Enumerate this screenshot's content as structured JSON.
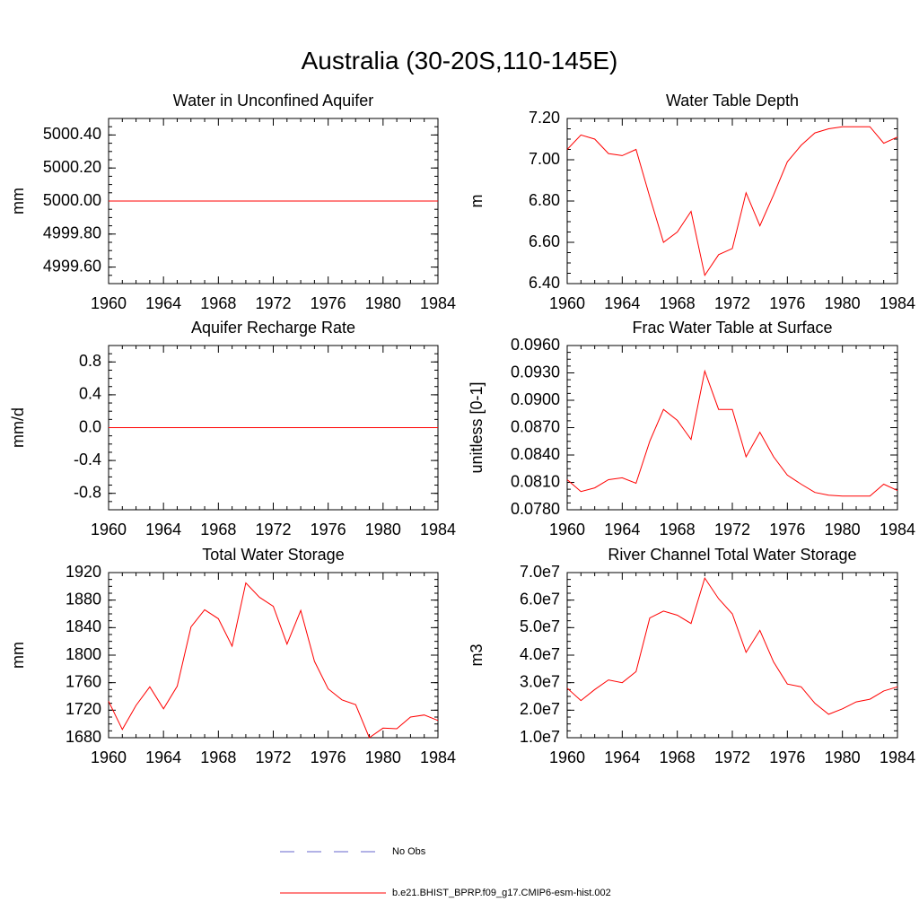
{
  "page": {
    "title": "Australia (30-20S,110-145E)"
  },
  "legend": {
    "items": [
      {
        "label": "No Obs",
        "color": "#6666cc",
        "style": "dashed"
      },
      {
        "label": "b.e21.BHIST_BPRP.f09_g17.CMIP6-esm-hist.002",
        "color": "#ff0000",
        "style": "solid"
      }
    ]
  },
  "chart_data": [
    {
      "type": "line",
      "title": "Water in Unconfined Aquifer",
      "xlabel": "",
      "ylabel": "mm",
      "xlim": [
        1960,
        1984
      ],
      "ylim": [
        4999.5,
        5000.5
      ],
      "xticks": [
        "1960",
        "1964",
        "1968",
        "1972",
        "1976",
        "1980",
        "1984"
      ],
      "yticks": [
        "4999.60",
        "4999.80",
        "5000.00",
        "5000.20",
        "5000.40"
      ],
      "x": [
        1960,
        1961,
        1962,
        1963,
        1964,
        1965,
        1966,
        1967,
        1968,
        1969,
        1970,
        1971,
        1972,
        1973,
        1974,
        1975,
        1976,
        1977,
        1978,
        1979,
        1980,
        1981,
        1982,
        1983,
        1984
      ],
      "series": [
        {
          "values": [
            5000,
            5000,
            5000,
            5000,
            5000,
            5000,
            5000,
            5000,
            5000,
            5000,
            5000,
            5000,
            5000,
            5000,
            5000,
            5000,
            5000,
            5000,
            5000,
            5000,
            5000,
            5000,
            5000,
            5000,
            5000
          ]
        }
      ]
    },
    {
      "type": "line",
      "title": "Water Table Depth",
      "xlabel": "",
      "ylabel": "m",
      "xlim": [
        1960,
        1984
      ],
      "ylim": [
        6.4,
        7.2
      ],
      "xticks": [
        "1960",
        "1964",
        "1968",
        "1972",
        "1976",
        "1980",
        "1984"
      ],
      "yticks": [
        "6.40",
        "6.60",
        "6.80",
        "7.00",
        "7.20"
      ],
      "x": [
        1960,
        1961,
        1962,
        1963,
        1964,
        1965,
        1966,
        1967,
        1968,
        1969,
        1970,
        1971,
        1972,
        1973,
        1974,
        1975,
        1976,
        1977,
        1978,
        1979,
        1980,
        1981,
        1982,
        1983,
        1984
      ],
      "series": [
        {
          "values": [
            7.05,
            7.12,
            7.1,
            7.03,
            7.02,
            7.05,
            6.82,
            6.6,
            6.65,
            6.75,
            6.44,
            6.54,
            6.57,
            6.84,
            6.68,
            6.83,
            6.99,
            7.07,
            7.13,
            7.15,
            7.16,
            7.16,
            7.16,
            7.08,
            7.11
          ]
        }
      ]
    },
    {
      "type": "line",
      "title": "Aquifer Recharge Rate",
      "xlabel": "",
      "ylabel": "mm/d",
      "xlim": [
        1960,
        1984
      ],
      "ylim": [
        -1.0,
        1.0
      ],
      "xticks": [
        "1960",
        "1964",
        "1968",
        "1972",
        "1976",
        "1980",
        "1984"
      ],
      "yticks": [
        "-0.8",
        "-0.4",
        "0.0",
        "0.4",
        "0.8"
      ],
      "x": [
        1960,
        1961,
        1962,
        1963,
        1964,
        1965,
        1966,
        1967,
        1968,
        1969,
        1970,
        1971,
        1972,
        1973,
        1974,
        1975,
        1976,
        1977,
        1978,
        1979,
        1980,
        1981,
        1982,
        1983,
        1984
      ],
      "series": [
        {
          "values": [
            0,
            0,
            0,
            0,
            0,
            0,
            0,
            0,
            0,
            0,
            0,
            0,
            0,
            0,
            0,
            0,
            0,
            0,
            0,
            0,
            0,
            0,
            0,
            0,
            0
          ]
        }
      ]
    },
    {
      "type": "line",
      "title": "Frac Water Table at Surface",
      "xlabel": "",
      "ylabel": "unitless [0-1]",
      "xlim": [
        1960,
        1984
      ],
      "ylim": [
        0.078,
        0.096
      ],
      "xticks": [
        "1960",
        "1964",
        "1968",
        "1972",
        "1976",
        "1980",
        "1984"
      ],
      "yticks": [
        "0.0780",
        "0.0810",
        "0.0840",
        "0.0870",
        "0.0900",
        "0.0930",
        "0.0960"
      ],
      "x": [
        1960,
        1961,
        1962,
        1963,
        1964,
        1965,
        1966,
        1967,
        1968,
        1969,
        1970,
        1971,
        1972,
        1973,
        1974,
        1975,
        1976,
        1977,
        1978,
        1979,
        1980,
        1981,
        1982,
        1983,
        1984
      ],
      "series": [
        {
          "values": [
            0.0813,
            0.08,
            0.0804,
            0.0813,
            0.0815,
            0.0809,
            0.0855,
            0.089,
            0.0878,
            0.0857,
            0.0932,
            0.089,
            0.089,
            0.0838,
            0.0865,
            0.0838,
            0.0818,
            0.0808,
            0.0799,
            0.0796,
            0.0795,
            0.0795,
            0.0795,
            0.0808,
            0.0801
          ]
        }
      ]
    },
    {
      "type": "line",
      "title": "Total Water Storage",
      "xlabel": "",
      "ylabel": "mm",
      "xlim": [
        1960,
        1984
      ],
      "ylim": [
        1680,
        1920
      ],
      "xticks": [
        "1960",
        "1964",
        "1968",
        "1972",
        "1976",
        "1980",
        "1984"
      ],
      "yticks": [
        "1680",
        "1720",
        "1760",
        "1800",
        "1840",
        "1880",
        "1920"
      ],
      "x": [
        1960,
        1961,
        1962,
        1963,
        1964,
        1965,
        1966,
        1967,
        1968,
        1969,
        1970,
        1971,
        1972,
        1973,
        1974,
        1975,
        1976,
        1977,
        1978,
        1979,
        1980,
        1981,
        1982,
        1983,
        1984
      ],
      "series": [
        {
          "values": [
            1733,
            1692,
            1727,
            1754,
            1722,
            1755,
            1841,
            1866,
            1853,
            1813,
            1905,
            1884,
            1871,
            1816,
            1865,
            1791,
            1751,
            1735,
            1728,
            1680,
            1694,
            1693,
            1710,
            1713,
            1705
          ]
        }
      ]
    },
    {
      "type": "line",
      "title": "River Channel Total Water Storage",
      "xlabel": "",
      "ylabel": "m3",
      "xlim": [
        1960,
        1984
      ],
      "ylim": [
        10000000.0,
        70000000.0
      ],
      "xticks": [
        "1960",
        "1964",
        "1968",
        "1972",
        "1976",
        "1980",
        "1984"
      ],
      "yticks": [
        "1.0e7",
        "2.0e7",
        "3.0e7",
        "4.0e7",
        "5.0e7",
        "6.0e7",
        "7.0e7"
      ],
      "x": [
        1960,
        1961,
        1962,
        1963,
        1964,
        1965,
        1966,
        1967,
        1968,
        1969,
        1970,
        1971,
        1972,
        1973,
        1974,
        1975,
        1976,
        1977,
        1978,
        1979,
        1980,
        1981,
        1982,
        1983,
        1984
      ],
      "series": [
        {
          "values": [
            28000000.0,
            23500000.0,
            27500000.0,
            31000000.0,
            30000000.0,
            34000000.0,
            53500000.0,
            56000000.0,
            54500000.0,
            51500000.0,
            68000000.0,
            60500000.0,
            55000000.0,
            41000000.0,
            49000000.0,
            37500000.0,
            29500000.0,
            28500000.0,
            22500000.0,
            18500000.0,
            20500000.0,
            23000000.0,
            24000000.0,
            27000000.0,
            28500000.0
          ]
        }
      ]
    }
  ]
}
